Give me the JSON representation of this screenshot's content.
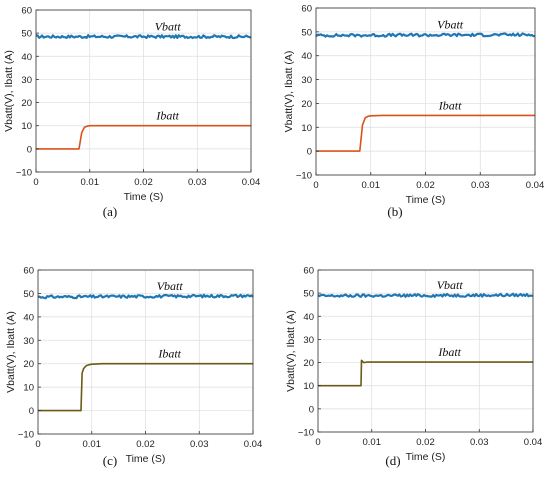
{
  "chart_data": [
    {
      "type": "line",
      "caption": "(a)",
      "xlabel": "Time (S)",
      "ylabel": "Vbatt(V), Ibatt (A)",
      "xlim": [
        0,
        0.04
      ],
      "ylim": [
        -10,
        60
      ],
      "xticks": [
        0,
        0.01,
        0.02,
        0.03,
        0.04
      ],
      "xtick_labels": [
        "0",
        "0.01",
        "0.02",
        "0.03",
        "0.04"
      ],
      "yticks": [
        -10,
        0,
        10,
        20,
        30,
        40,
        50,
        60
      ],
      "ytick_labels": [
        "−10",
        "0",
        "10",
        "20",
        "30",
        "40",
        "50",
        "60"
      ],
      "grid": true,
      "series": [
        {
          "name": "Vbatt",
          "color": "#1f77b4",
          "x": [
            0,
            0.04
          ],
          "y": [
            48.5,
            48.5
          ]
        },
        {
          "name": "Ibatt",
          "color": "#d95319",
          "x": [
            0,
            0.008,
            0.0085,
            0.009,
            0.0095,
            0.01,
            0.012,
            0.04
          ],
          "y": [
            0,
            0,
            7,
            9.3,
            9.8,
            10,
            10,
            10
          ]
        }
      ]
    },
    {
      "type": "line",
      "caption": "(b)",
      "xlabel": "Time (S)",
      "ylabel": "Vbatt(V), Ibatt (A)",
      "xlim": [
        0,
        0.04
      ],
      "ylim": [
        -10,
        60
      ],
      "xticks": [
        0,
        0.01,
        0.02,
        0.03,
        0.04
      ],
      "xtick_labels": [
        "0",
        "0.01",
        "0.02",
        "0.03",
        "0.04"
      ],
      "yticks": [
        -10,
        0,
        10,
        20,
        30,
        40,
        50,
        60
      ],
      "ytick_labels": [
        "−10",
        "0",
        "10",
        "20",
        "30",
        "40",
        "50",
        "60"
      ],
      "grid": true,
      "series": [
        {
          "name": "Vbatt",
          "color": "#1f77b4",
          "x": [
            0,
            0.04
          ],
          "y": [
            48.5,
            48.8
          ]
        },
        {
          "name": "Ibatt",
          "color": "#d95319",
          "x": [
            0,
            0.008,
            0.0085,
            0.009,
            0.0095,
            0.01,
            0.012,
            0.04
          ],
          "y": [
            0,
            0,
            11,
            14,
            14.6,
            14.8,
            15,
            15
          ]
        }
      ]
    },
    {
      "type": "line",
      "caption": "(c)",
      "xlabel": "Time (S)",
      "ylabel": "Vbatt(V), Ibatt (A)",
      "xlim": [
        0,
        0.04
      ],
      "ylim": [
        -10,
        60
      ],
      "xticks": [
        0,
        0.01,
        0.02,
        0.03,
        0.04
      ],
      "xtick_labels": [
        "0",
        "0.01",
        "0.02",
        "0.03",
        "0.04"
      ],
      "yticks": [
        -10,
        0,
        10,
        20,
        30,
        40,
        50,
        60
      ],
      "ytick_labels": [
        "−10",
        "0",
        "10",
        "20",
        "30",
        "40",
        "50",
        "60"
      ],
      "grid": true,
      "series": [
        {
          "name": "Vbatt",
          "color": "#1f77b4",
          "x": [
            0,
            0.04
          ],
          "y": [
            48.5,
            49
          ]
        },
        {
          "name": "Ibatt",
          "color": "#6b5a14",
          "x": [
            0,
            0.008,
            0.0082,
            0.0085,
            0.009,
            0.0095,
            0.01,
            0.012,
            0.04
          ],
          "y": [
            0,
            0,
            16,
            18,
            19.2,
            19.6,
            19.8,
            20,
            20
          ]
        }
      ]
    },
    {
      "type": "line",
      "caption": "(d)",
      "xlabel": "Time (S)",
      "ylabel": "Vbatt(V), Ibatt (A)",
      "xlim": [
        0,
        0.04
      ],
      "ylim": [
        -10,
        60
      ],
      "xticks": [
        0,
        0.01,
        0.02,
        0.03,
        0.04
      ],
      "xtick_labels": [
        "0",
        "0.01",
        "0.02",
        "0.03",
        "0.04"
      ],
      "yticks": [
        -10,
        0,
        10,
        20,
        30,
        40,
        50,
        60
      ],
      "ytick_labels": [
        "−10",
        "0",
        "10",
        "20",
        "30",
        "40",
        "50",
        "60"
      ],
      "grid": true,
      "series": [
        {
          "name": "Vbatt",
          "color": "#1f77b4",
          "x": [
            0,
            0.04
          ],
          "y": [
            48.8,
            49.2
          ]
        },
        {
          "name": "Ibatt",
          "color": "#6b5a14",
          "x": [
            0,
            0.008,
            0.0081,
            0.0085,
            0.009,
            0.04
          ],
          "y": [
            10,
            10,
            21,
            20,
            20.2,
            20.2
          ]
        }
      ]
    }
  ]
}
